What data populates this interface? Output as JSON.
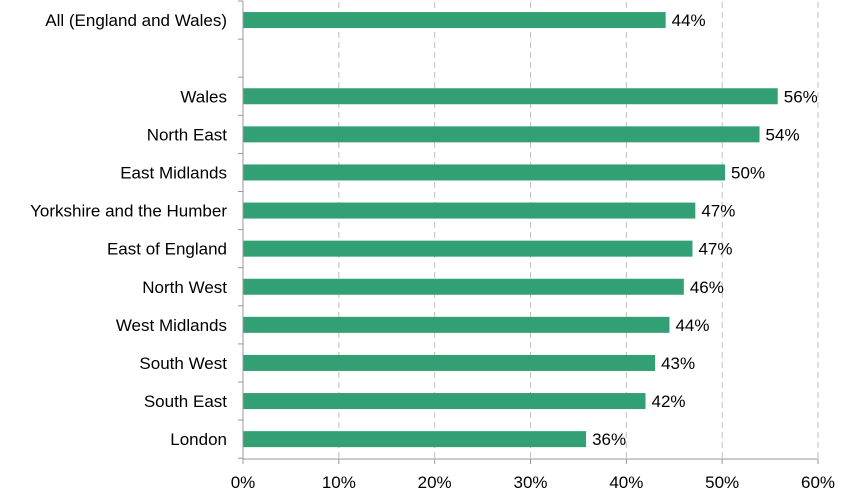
{
  "chart_data": {
    "type": "bar",
    "orientation": "horizontal",
    "title": "",
    "xlabel": "",
    "ylabel": "",
    "categories": [
      "All (England and Wales)",
      "",
      "Wales",
      "North East",
      "East Midlands",
      "Yorkshire and the Humber",
      "East of England",
      "North West",
      "West Midlands",
      "South West",
      "South East",
      "London"
    ],
    "values": [
      44.1,
      null,
      55.8,
      53.9,
      50.3,
      47.2,
      46.9,
      46.0,
      44.5,
      43.0,
      42.0,
      35.8
    ],
    "value_labels": [
      "44%",
      "",
      "56%",
      "54%",
      "50%",
      "47%",
      "47%",
      "46%",
      "44%",
      "43%",
      "42%",
      "36%"
    ],
    "xlim": [
      0,
      60
    ],
    "ticks": [
      0,
      10,
      20,
      30,
      40,
      50,
      60
    ],
    "tick_labels": [
      "0%",
      "10%",
      "20%",
      "30%",
      "40%",
      "50%",
      "60%"
    ],
    "grid": "vertical-dashed",
    "legend": "none",
    "bar_color": "#339f74"
  }
}
